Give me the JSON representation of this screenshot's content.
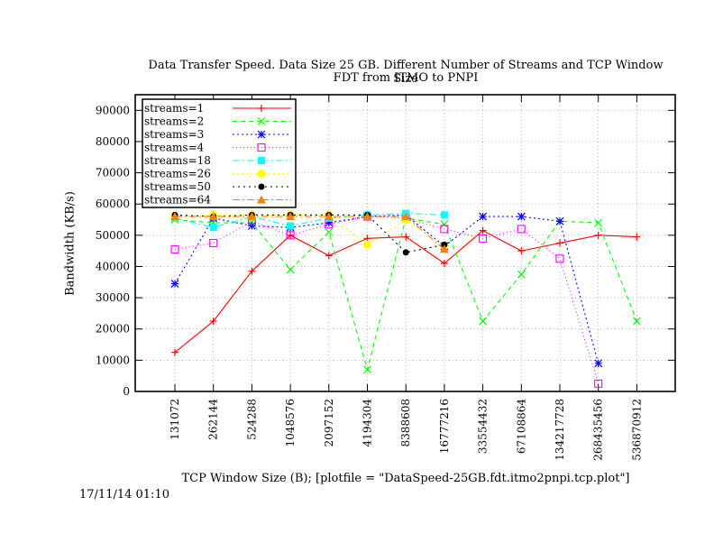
{
  "title_line1": "Data Transfer Speed. Data Size 25 GB. Different Number of Streams and TCP Window Size",
  "title_line2": "FDT from ITMO to PNPI",
  "timestamp": "17/11/14 01:10",
  "chart_data": {
    "type": "line",
    "title": "Data Transfer Speed. Data Size 25 GB. Different Number of Streams and TCP Window Size / FDT from ITMO to PNPI",
    "xlabel": "TCP Window Size (B); [plotfile = \"DataSpeed-25GB.fdt.itmo2pnpi.tcp.plot\"]",
    "ylabel": "Bandwidth (KB/s)",
    "categories": [
      "131072",
      "262144",
      "524288",
      "1048576",
      "2097152",
      "4194304",
      "8388608",
      "16777216",
      "33554432",
      "67108864",
      "134217728",
      "268435456",
      "536870912"
    ],
    "ylim": [
      0,
      95000
    ],
    "yticks": [
      0,
      10000,
      20000,
      30000,
      40000,
      50000,
      60000,
      70000,
      80000,
      90000
    ],
    "grid": true,
    "legend_position": "top-left",
    "series": [
      {
        "name": "streams=1",
        "color": "#ff0000",
        "dash": "",
        "marker": "plus",
        "values": [
          12500,
          22500,
          38500,
          50000,
          43500,
          49000,
          49500,
          41000,
          51500,
          45000,
          47500,
          50000,
          49500
        ]
      },
      {
        "name": "streams=2",
        "color": "#00ff00",
        "dash": "5,4",
        "marker": "x",
        "values": [
          55000,
          54000,
          54000,
          39000,
          51000,
          7000,
          55500,
          53500,
          22500,
          37500,
          54500,
          54000,
          22500
        ]
      },
      {
        "name": "streams=3",
        "color": "#0000ff",
        "dash": "2,3",
        "marker": "star",
        "values": [
          34500,
          55500,
          53000,
          52500,
          54000,
          56000,
          56500,
          46500,
          56000,
          56000,
          54500,
          9000,
          null
        ]
      },
      {
        "name": "streams=4",
        "color": "#ff00ff",
        "dash": "1,3",
        "marker": "square",
        "values": [
          45500,
          47500,
          54500,
          50000,
          53500,
          56000,
          55500,
          52000,
          49000,
          52000,
          42500,
          2500,
          null
        ]
      },
      {
        "name": "streams=18",
        "color": "#00ffff",
        "dash": "8,3,2,3",
        "marker": "filled-square",
        "values": [
          55500,
          52500,
          56000,
          53000,
          55500,
          56500,
          57000,
          56500,
          null,
          null,
          null,
          null,
          null
        ]
      },
      {
        "name": "streams=26",
        "color": "#ffff00",
        "dash": "2,3",
        "marker": "circle",
        "values": [
          56000,
          56500,
          56500,
          56500,
          56500,
          47000,
          55000,
          46500,
          null,
          null,
          null,
          null,
          null
        ]
      },
      {
        "name": "streams=50",
        "color": "#000000",
        "dash": "2,4",
        "marker": "filled-circle",
        "values": [
          56500,
          56000,
          56500,
          56500,
          56500,
          56500,
          44500,
          47000,
          null,
          null,
          null,
          null,
          null
        ]
      },
      {
        "name": "streams=64",
        "color": "#ff8000",
        "dash": "8,3,2,3",
        "marker": "triangle",
        "values": [
          56000,
          56000,
          56000,
          56000,
          56000,
          56000,
          56000,
          45500,
          null,
          null,
          null,
          null,
          null
        ]
      }
    ]
  }
}
